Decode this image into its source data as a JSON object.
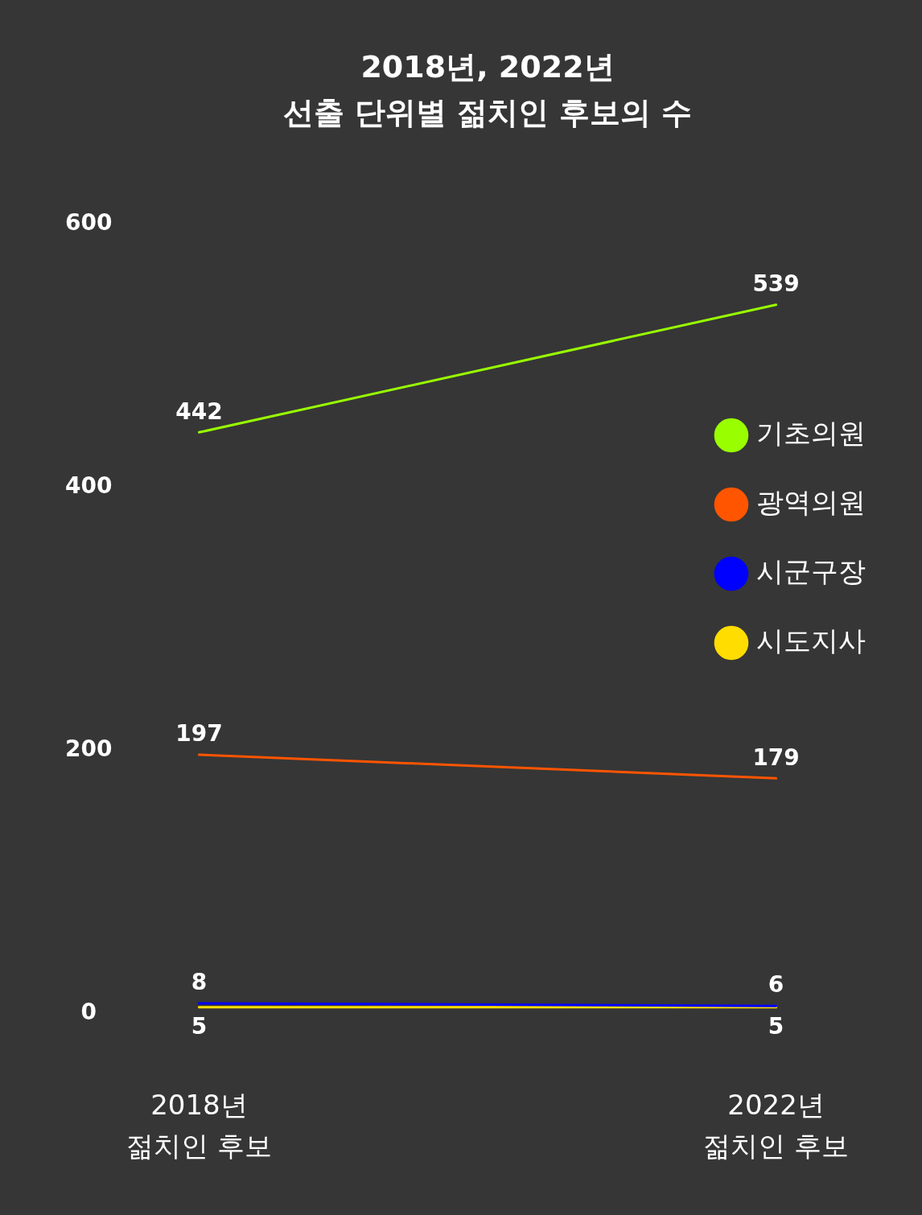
{
  "chart_data": {
    "type": "line",
    "title": "2018년, 2022년\n선출 단위별 젊치인 후보의 수",
    "categories": [
      "2018년\n젊치인 후보",
      "2022년\n젊치인 후보"
    ],
    "series": [
      {
        "name": "기초의원",
        "color": "#99ff00",
        "values": [
          442,
          539
        ]
      },
      {
        "name": "광역의원",
        "color": "#ff5500",
        "values": [
          197,
          179
        ]
      },
      {
        "name": "시군구장",
        "color": "#0000ff",
        "values": [
          8,
          6
        ]
      },
      {
        "name": "시도지사",
        "color": "#ffdd00",
        "values": [
          5,
          5
        ]
      }
    ],
    "ylim": [
      0,
      600
    ],
    "yticks": [
      0,
      200,
      400,
      600
    ],
    "legend": "right",
    "marker": "none",
    "data_labels": true
  }
}
